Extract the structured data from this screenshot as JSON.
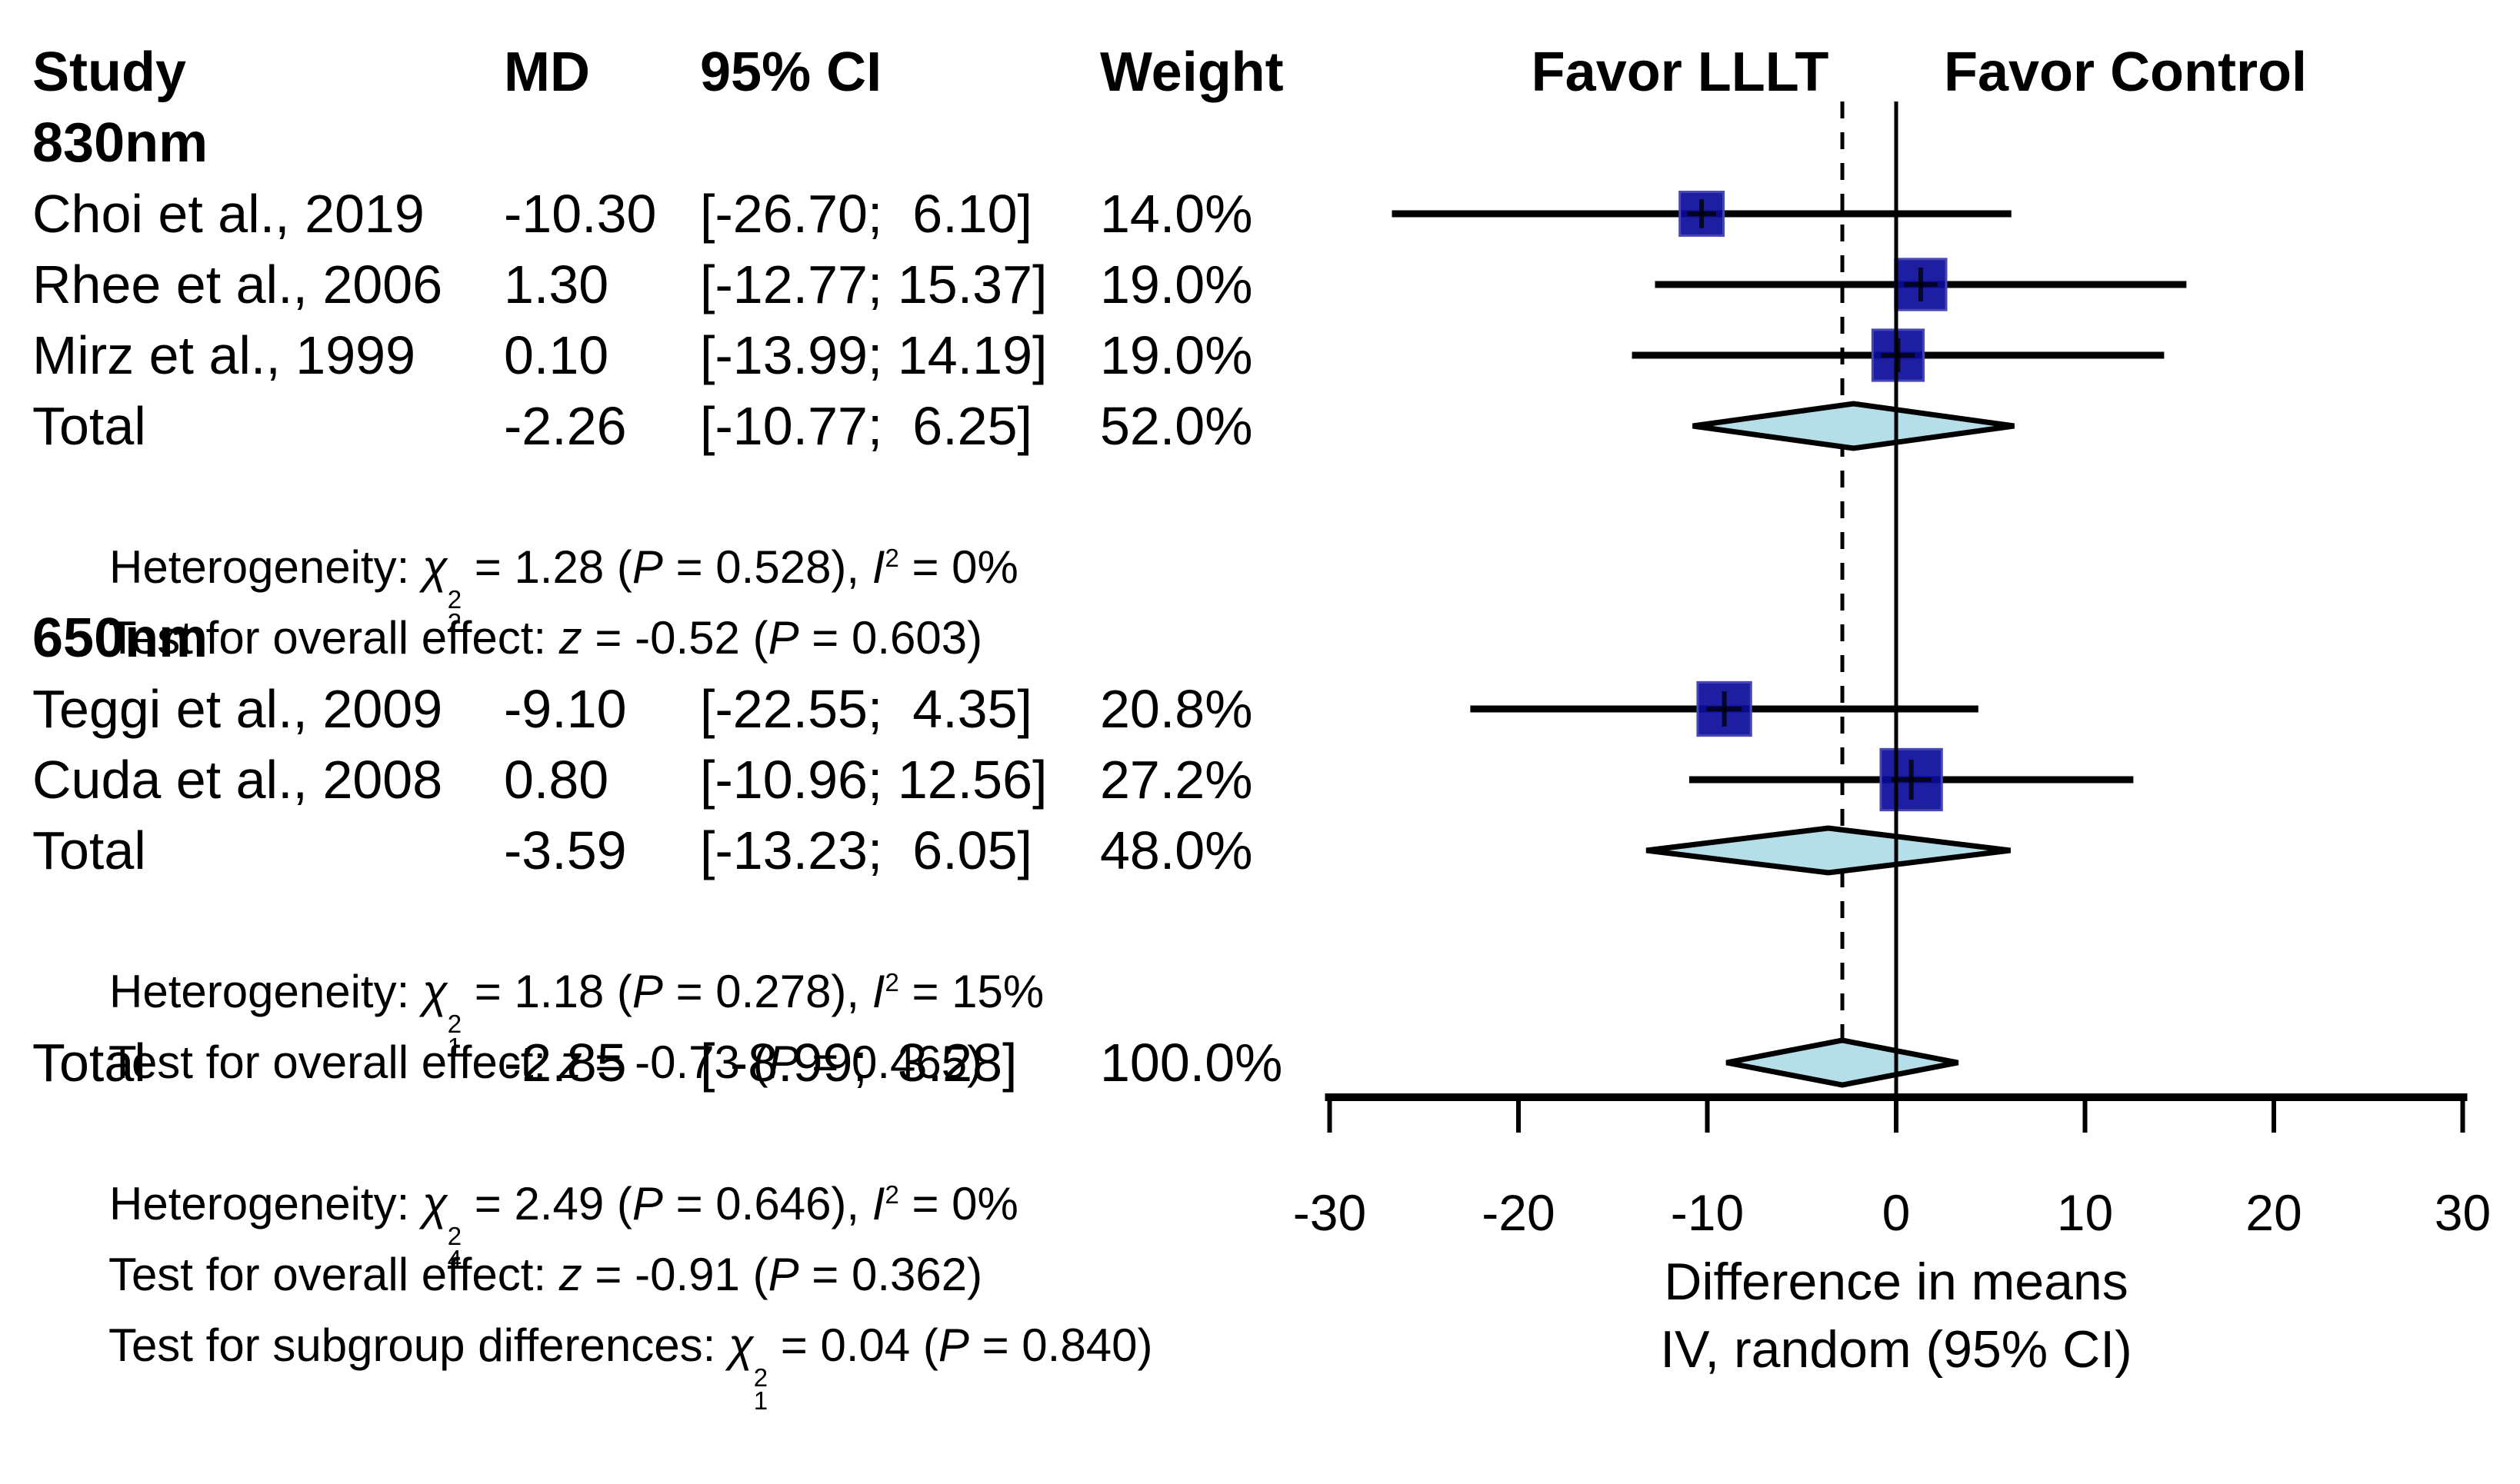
{
  "table": {
    "header": {
      "study": "Study",
      "md": "MD",
      "ci": "95% CI",
      "weight": "Weight"
    },
    "rows": {
      "g830": {
        "label": "830nm"
      },
      "choi": {
        "study": "Choi et al., 2019",
        "md": "-10.30",
        "ci": "[-26.70;  6.10]",
        "weight": "14.0%"
      },
      "rhee": {
        "study": "Rhee et al., 2006",
        "md": "1.30",
        "ci": "[-12.77; 15.37]",
        "weight": "19.0%"
      },
      "mirz": {
        "study": "Mirz et al., 1999",
        "md": "0.10",
        "ci": "[-13.99; 14.19]",
        "weight": "19.0%"
      },
      "tot830": {
        "study": "Total",
        "md": "-2.26",
        "ci": "[-10.77;  6.25]",
        "weight": "52.0%"
      },
      "het830": {
        "pre": "Heterogeneity: ",
        "chi": "χ",
        "sup": "2",
        "sub": "2",
        "mid": " = 1.28 (",
        "p": "P",
        "post_p": " = 0.528), ",
        "i": "I",
        "isup": "2",
        "post_i": " = 0%"
      },
      "test830": {
        "pre": "Test for overall effect: ",
        "z": "z",
        "mid": " = -0.52 (",
        "p": "P",
        "post": " = 0.603)"
      },
      "g650": {
        "label": "650nm"
      },
      "teggi": {
        "study": "Teggi et al., 2009",
        "md": "-9.10",
        "ci": "[-22.55;  4.35]",
        "weight": "20.8%"
      },
      "cuda": {
        "study": "Cuda et al., 2008",
        "md": "0.80",
        "ci": "[-10.96; 12.56]",
        "weight": "27.2%"
      },
      "tot650": {
        "study": "Total",
        "md": "-3.59",
        "ci": "[-13.23;  6.05]",
        "weight": "48.0%"
      },
      "het650": {
        "pre": "Heterogeneity: ",
        "chi": "χ",
        "sup": "2",
        "sub": "1",
        "mid": " = 1.18 (",
        "p": "P",
        "post_p": " = 0.278), ",
        "i": "I",
        "isup": "2",
        "post_i": " = 15%"
      },
      "test650": {
        "pre": "Test for overall effect: ",
        "z": "z",
        "mid": " = -0.73 (",
        "p": "P",
        "post": " = 0.465)"
      },
      "totall": {
        "study": "Total",
        "md": "-2.85",
        "ci": "[ -8.99;  3.28]",
        "weight": "100.0%"
      },
      "hetall": {
        "pre": "Heterogeneity: ",
        "chi": "χ",
        "sup": "2",
        "sub": "4",
        "mid": " = 2.49 (",
        "p": "P",
        "post_p": " = 0.646), ",
        "i": "I",
        "isup": "2",
        "post_i": " = 0%"
      },
      "testall": {
        "pre": "Test for overall effect: ",
        "z": "z",
        "mid": " = -0.91 (",
        "p": "P",
        "post": " = 0.362)"
      },
      "subdiff": {
        "pre": "Test for subgroup differences: ",
        "chi": "χ",
        "sup": "2",
        "sub": "1",
        "mid": " = 0.04 (",
        "p": "P",
        "post": " = 0.840)"
      }
    }
  },
  "plot_header": {
    "favor_left": "Favor LLLT",
    "favor_right": "Favor Control"
  },
  "axis_caption": {
    "line1": "Difference in means",
    "line2": "IV, random (95% CI)"
  },
  "chart_data": {
    "type": "forest",
    "x_axis": {
      "min": -30,
      "max": 30,
      "ticks": [
        -30,
        -20,
        -10,
        0,
        10,
        20,
        30
      ],
      "zero_line": 0,
      "pooled_effect_line": -2.85,
      "label": [
        "Difference in means",
        "IV, random (95% CI)"
      ]
    },
    "columns": [
      "Study",
      "MD",
      "95% CI",
      "Weight"
    ],
    "favor_labels": {
      "left": "Favor LLLT",
      "right": "Favor Control"
    },
    "groups": [
      {
        "name": "830nm",
        "studies": [
          {
            "study": "Choi et al., 2019",
            "md": -10.3,
            "ci_low": -26.7,
            "ci_high": 6.1,
            "weight_pct": 14.0
          },
          {
            "study": "Rhee et al., 2006",
            "md": 1.3,
            "ci_low": -12.77,
            "ci_high": 15.37,
            "weight_pct": 19.0
          },
          {
            "study": "Mirz et al., 1999",
            "md": 0.1,
            "ci_low": -13.99,
            "ci_high": 14.19,
            "weight_pct": 19.0
          }
        ],
        "total": {
          "md": -2.26,
          "ci_low": -10.77,
          "ci_high": 6.25,
          "weight_pct": 52.0
        },
        "heterogeneity": {
          "chi2_df": 2,
          "chi2": 1.28,
          "P": 0.528,
          "I2_pct": 0
        },
        "test_overall_effect": {
          "z": -0.52,
          "P": 0.603
        }
      },
      {
        "name": "650nm",
        "studies": [
          {
            "study": "Teggi et al., 2009",
            "md": -9.1,
            "ci_low": -22.55,
            "ci_high": 4.35,
            "weight_pct": 20.8
          },
          {
            "study": "Cuda et al., 2008",
            "md": 0.8,
            "ci_low": -10.96,
            "ci_high": 12.56,
            "weight_pct": 27.2
          }
        ],
        "total": {
          "md": -3.59,
          "ci_low": -13.23,
          "ci_high": 6.05,
          "weight_pct": 48.0
        },
        "heterogeneity": {
          "chi2_df": 1,
          "chi2": 1.18,
          "P": 0.278,
          "I2_pct": 15
        },
        "test_overall_effect": {
          "z": -0.73,
          "P": 0.465
        }
      }
    ],
    "overall": {
      "md": -2.85,
      "ci_low": -8.99,
      "ci_high": 3.28,
      "weight_pct": 100.0,
      "heterogeneity": {
        "chi2_df": 4,
        "chi2": 2.49,
        "P": 0.646,
        "I2_pct": 0
      },
      "test_overall_effect": {
        "z": -0.91,
        "P": 0.362
      },
      "test_subgroup_differences": {
        "chi2_df": 1,
        "chi2": 0.04,
        "P": 0.84
      }
    },
    "markers": [
      {
        "kind": "square",
        "est": -10.3,
        "lo": -26.7,
        "hi": 6.1,
        "weight_pct": 14.0
      },
      {
        "kind": "square",
        "est": 1.3,
        "lo": -12.77,
        "hi": 15.37,
        "weight_pct": 19.0
      },
      {
        "kind": "square",
        "est": 0.1,
        "lo": -13.99,
        "hi": 14.19,
        "weight_pct": 19.0
      },
      {
        "kind": "diamond",
        "est": -2.26,
        "lo": -10.77,
        "hi": 6.25
      },
      {
        "kind": "square",
        "est": -9.1,
        "lo": -22.55,
        "hi": 4.35,
        "weight_pct": 20.8
      },
      {
        "kind": "square",
        "est": 0.8,
        "lo": -10.96,
        "hi": 12.56,
        "weight_pct": 27.2
      },
      {
        "kind": "diamond",
        "est": -3.59,
        "lo": -13.23,
        "hi": 6.05
      },
      {
        "kind": "diamond",
        "est": -2.85,
        "lo": -8.99,
        "hi": 3.28
      }
    ],
    "colors": {
      "square": "#0b0b9b",
      "square_edge": "#4646b4",
      "diamond_fill": "#b6dee9",
      "line": "#000000"
    }
  }
}
